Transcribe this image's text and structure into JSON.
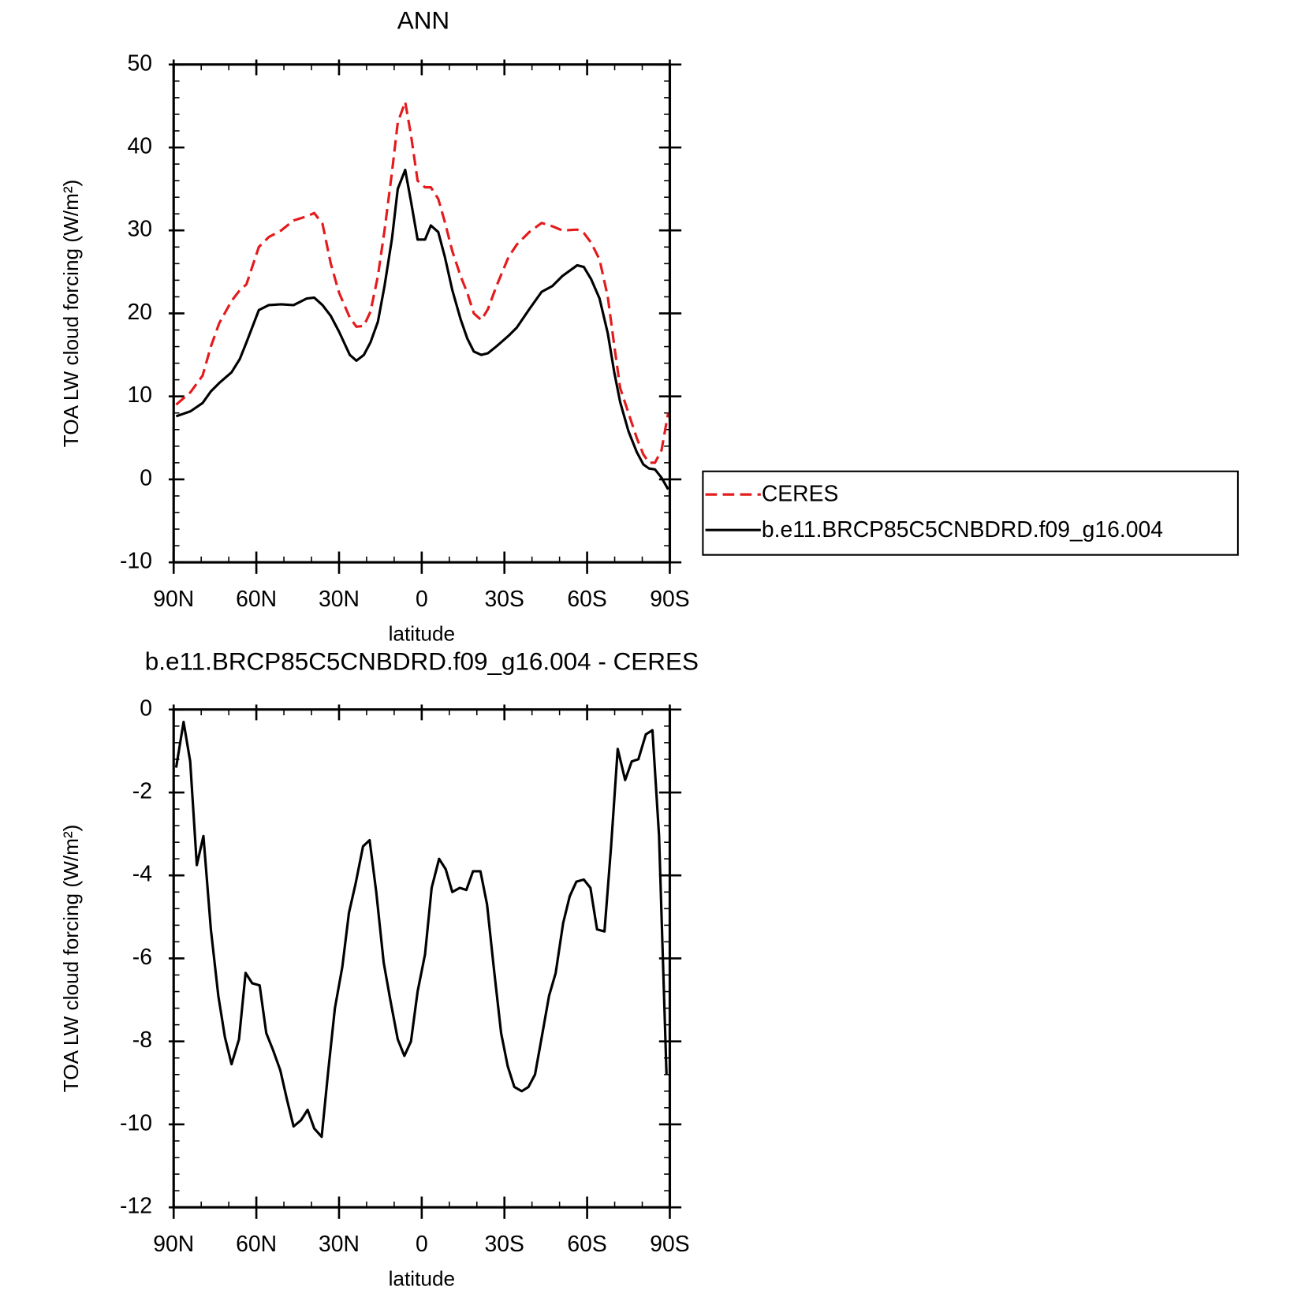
{
  "chart_data": [
    {
      "type": "line",
      "title": "ANN",
      "xlabel": "latitude",
      "ylabel": "TOA LW cloud forcing (W/m²)",
      "x": [
        89.1,
        83.9,
        79.5,
        76.5,
        73.5,
        69,
        66,
        63.6,
        59.1,
        55.5,
        51,
        46.5,
        41.7,
        39,
        36,
        33,
        30,
        26.1,
        23.7,
        21,
        18.6,
        15.9,
        13.5,
        10.8,
        8.7,
        6,
        3.9,
        1.5,
        -1.2,
        -3.3,
        -6,
        -8.4,
        -11.1,
        -14.1,
        -16.5,
        -18.9,
        -21.6,
        -24,
        -27,
        -31.5,
        -34.5,
        -39,
        -43.5,
        -47.4,
        -51,
        -56.4,
        -58.8,
        -61.5,
        -64.5,
        -67.5,
        -69.9,
        -72,
        -75,
        -78,
        -80.4,
        -82.5,
        -84.6,
        -87,
        -89.4
      ],
      "series": [
        {
          "name": "CERES",
          "color": "#e41a1c",
          "linestyle": "dashed",
          "values": [
            9.0,
            10.5,
            12.5,
            16,
            18.8,
            21.5,
            22.8,
            23.5,
            28,
            29.2,
            30,
            31.2,
            31.7,
            32.1,
            30.8,
            26,
            22.5,
            19.5,
            18.4,
            18.5,
            20.2,
            24.5,
            30,
            37,
            43,
            45.5,
            41.5,
            36,
            35.2,
            35.2,
            33.8,
            31,
            27.5,
            24.5,
            22.5,
            20,
            19.2,
            20.5,
            23.2,
            26.8,
            28.3,
            29.8,
            30.9,
            30.5,
            30,
            30.1,
            29.7,
            28.5,
            26.5,
            22,
            16,
            11,
            8,
            5,
            3,
            2,
            2,
            3.5,
            8
          ]
        },
        {
          "name": "b.e11.BRCP85C5CNBDRD.f09_g16.004",
          "color": "#000000",
          "linestyle": "solid",
          "values": [
            7.6,
            8.2,
            9.2,
            10.6,
            11.6,
            12.9,
            14.5,
            16.5,
            20.4,
            21.0,
            21.1,
            21.0,
            21.8,
            21.9,
            21.0,
            19.7,
            17.8,
            15.0,
            14.3,
            15.0,
            16.5,
            19.0,
            23.3,
            29,
            35.0,
            37.3,
            33.5,
            28.9,
            28.9,
            30.6,
            29.8,
            26.8,
            22.8,
            19.3,
            17.0,
            15.4,
            15.0,
            15.2,
            16.0,
            17.3,
            18.3,
            20.5,
            22.6,
            23.3,
            24.5,
            25.8,
            25.6,
            24.1,
            21.8,
            17.6,
            12.8,
            9.3,
            5.8,
            3.3,
            1.8,
            1.3,
            1.2,
            0.2,
            -1.2
          ]
        }
      ],
      "xlim": [
        90,
        -90
      ],
      "xticks": [
        {
          "value": 90,
          "label": "90N"
        },
        {
          "value": 60,
          "label": "60N"
        },
        {
          "value": 30,
          "label": "30N"
        },
        0,
        {
          "value": -30,
          "label": "30S"
        },
        {
          "value": -60,
          "label": "60S"
        },
        {
          "value": -90,
          "label": "90S"
        }
      ],
      "ylim": [
        -10,
        50
      ],
      "yticks": [
        -10,
        0,
        10,
        20,
        30,
        40,
        50
      ],
      "legend": "outside-right"
    },
    {
      "type": "line",
      "title": "b.e11.BRCP85C5CNBDRD.f09_g16.004 - CERES",
      "xlabel": "latitude",
      "ylabel": "TOA LW cloud forcing (W/m²)",
      "x": [
        89.1,
        86.4,
        84,
        81.6,
        79.2,
        76.5,
        73.8,
        71.4,
        69,
        66.3,
        63.9,
        61.5,
        58.8,
        56.4,
        54,
        51.3,
        48.9,
        46.5,
        43.8,
        41.4,
        39,
        36.3,
        33.9,
        31.5,
        28.8,
        26.4,
        24,
        21.3,
        18.9,
        16.5,
        13.8,
        11.4,
        8.7,
        6.3,
        3.9,
        1.5,
        -1.2,
        -3.6,
        -6.3,
        -8.7,
        -11.1,
        -13.8,
        -16.2,
        -18.6,
        -21.3,
        -23.7,
        -26.1,
        -28.8,
        -31.2,
        -33.6,
        -36.3,
        -38.7,
        -41.1,
        -43.8,
        -46.2,
        -48.6,
        -51.3,
        -53.7,
        -56.1,
        -58.8,
        -61.2,
        -63.6,
        -66.3,
        -68.7,
        -71.1,
        -73.8,
        -76.2,
        -78.6,
        -81.3,
        -83.7,
        -86.1,
        -88.8
      ],
      "values": [
        -1.4,
        -0.3,
        -1.25,
        -3.75,
        -3.05,
        -5.3,
        -6.9,
        -7.9,
        -8.55,
        -7.95,
        -6.35,
        -6.6,
        -6.65,
        -7.8,
        -8.2,
        -8.7,
        -9.4,
        -10.05,
        -9.9,
        -9.65,
        -10.1,
        -10.3,
        -8.7,
        -7.2,
        -6.2,
        -4.9,
        -4.2,
        -3.3,
        -3.15,
        -4.4,
        -6.1,
        -7.0,
        -7.95,
        -8.35,
        -8.0,
        -6.8,
        -5.9,
        -4.3,
        -3.6,
        -3.85,
        -4.4,
        -4.3,
        -4.35,
        -3.9,
        -3.9,
        -4.7,
        -6.2,
        -7.8,
        -8.6,
        -9.1,
        -9.2,
        -9.1,
        -8.8,
        -7.8,
        -6.9,
        -6.35,
        -5.15,
        -4.5,
        -4.15,
        -4.1,
        -4.3,
        -5.3,
        -5.35,
        -3.3,
        -0.95,
        -1.7,
        -1.25,
        -1.2,
        -0.6,
        -0.5,
        -3.05,
        -8.8
      ],
      "color": "#000000",
      "xlim": [
        90,
        -90
      ],
      "xticks": [
        {
          "value": 90,
          "label": "90N"
        },
        {
          "value": 60,
          "label": "60N"
        },
        {
          "value": 30,
          "label": "30N"
        },
        0,
        {
          "value": -30,
          "label": "30S"
        },
        {
          "value": -60,
          "label": "60S"
        },
        {
          "value": -90,
          "label": "90S"
        }
      ],
      "ylim": [
        -12,
        0
      ],
      "yticks": [
        -12,
        -10,
        -8,
        -6,
        -4,
        -2,
        0
      ]
    }
  ]
}
